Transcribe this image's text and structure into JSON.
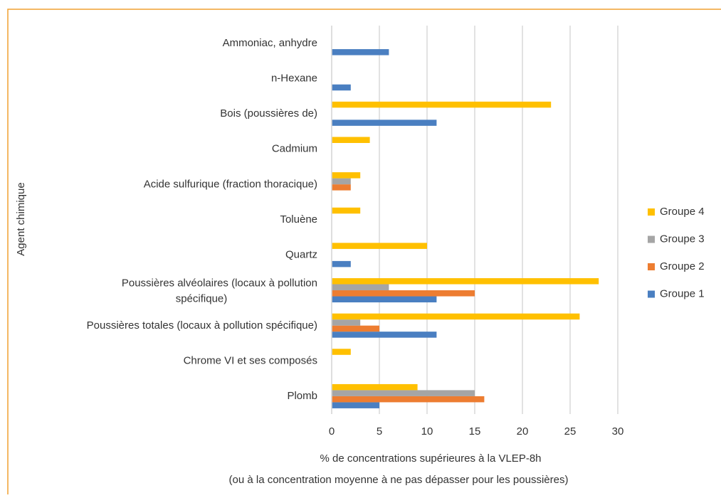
{
  "chart_data": {
    "type": "bar",
    "orientation": "horizontal",
    "ylabel": "Agent chimique",
    "xlabel": [
      "% de concentrations supérieures à la VLEP-8h",
      "(ou à la concentration moyenne à ne pas dépasser pour les poussières)"
    ],
    "categories": [
      "Ammoniac, anhydre",
      "n-Hexane",
      "Bois (poussières de)",
      "Cadmium",
      "Acide sulfurique (fraction thoracique)",
      "Toluène",
      "Quartz",
      "Poussières alvéolaires (locaux à pollution\nspécifique)",
      "Poussières totales (locaux à pollution spécifique)",
      "Chrome VI et ses composés",
      "Plomb"
    ],
    "series": [
      {
        "name": "Groupe 1",
        "color": "#4a7fc1",
        "values": [
          6,
          2,
          11,
          null,
          null,
          null,
          2,
          11,
          11,
          null,
          5
        ]
      },
      {
        "name": "Groupe 2",
        "color": "#ed7d31",
        "values": [
          null,
          null,
          null,
          null,
          2,
          null,
          null,
          15,
          5,
          null,
          16
        ]
      },
      {
        "name": "Groupe 3",
        "color": "#a5a5a5",
        "values": [
          null,
          null,
          null,
          null,
          2,
          null,
          null,
          6,
          3,
          null,
          15
        ]
      },
      {
        "name": "Groupe 4",
        "color": "#ffc000",
        "values": [
          null,
          null,
          23,
          4,
          3,
          3,
          10,
          28,
          26,
          2,
          9
        ]
      }
    ],
    "xlim": [
      0,
      30
    ],
    "xticks": [
      0,
      5,
      10,
      15,
      20,
      25,
      30
    ],
    "grid": true,
    "legend": "right"
  }
}
